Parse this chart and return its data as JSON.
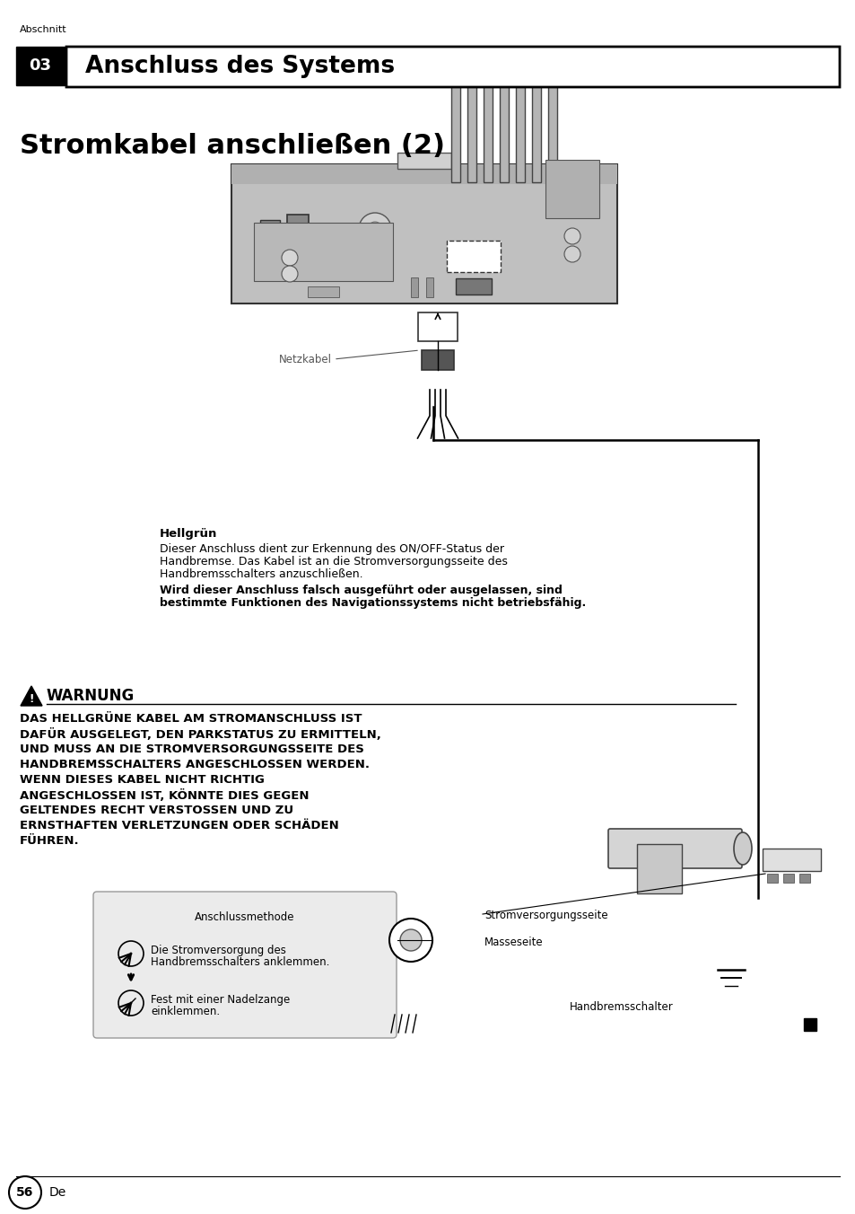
{
  "page_bg": "#ffffff",
  "section_label": "Abschnitt",
  "section_num": "03",
  "section_title": "Anschluss des Systems",
  "page_title": "Stromkabel anschließen (2)",
  "netzkabel_label": "Netzkabel",
  "hellgruen_heading": "Hellgrün",
  "hellgruen_text1": "Dieser Anschluss dient zur Erkennung des ON/OFF-Status der",
  "hellgruen_text2": "Handbremse. Das Kabel ist an die Stromversorgungsseite des",
  "hellgruen_text3": "Handbremsschalters anzuschließen.",
  "hellgruen_bold1": "Wird dieser Anschluss falsch ausgeführt oder ausgelassen, sind",
  "hellgruen_bold2": "bestimmte Funktionen des Navigationssystems nicht betriebsfähig.",
  "warnung_title": "WARNUNG",
  "warnung_lines": [
    "DAS HELLGRÜNE KABEL AM STROMANSCHLUSS IST",
    "DAFÜR AUSGELEGT, DEN PARKSTATUS ZU ERMITTELN,",
    "UND MUSS AN DIE STROMVERSORGUNGSSEITE DES",
    "HANDBREMSSCHALTERS ANGESCHLOSSEN WERDEN.",
    "WENN DIESES KABEL NICHT RICHTIG",
    "ANGESCHLOSSEN IST, KÖNNTE DIES GEGEN",
    "GELTENDES RECHT VERSTOSSEN UND ZU",
    "ERNSTHAFTEN VERLETZUNGEN ODER SCHÄDEN",
    "FÜHREN."
  ],
  "anschluss_title": "Anschlussmethode",
  "anschluss_text1": "Die Stromversorgung des",
  "anschluss_text2": "Handbremsschalters anklemmen.",
  "anschluss_text3": "Fest mit einer Nadelzange",
  "anschluss_text4": "einklemmen.",
  "stromversorgung_label": "Stromversorgungsseite",
  "masse_label": "Masseseite",
  "handbremse_label": "Handbremsschalter",
  "page_num": "56",
  "page_lang": "De",
  "device_color": "#c8c8c8",
  "device_border": "#333333"
}
